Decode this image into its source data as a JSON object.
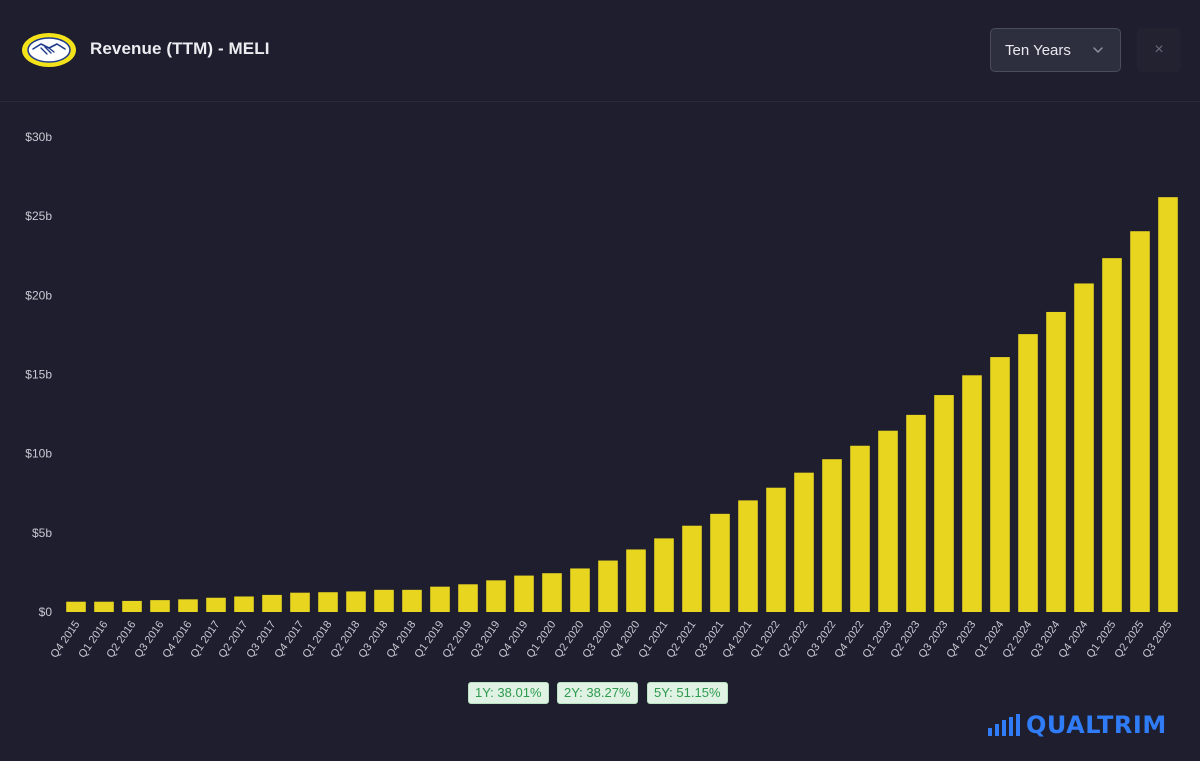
{
  "header": {
    "title": "Revenue (TTM) - MELI",
    "range_select": "Ten Years",
    "close_label": "×"
  },
  "growth_badges": [
    {
      "label": "1Y: 38.01%"
    },
    {
      "label": "2Y: 38.27%"
    },
    {
      "label": "5Y: 51.15%"
    }
  ],
  "brand": {
    "name": "QUALTRIM"
  },
  "colors": {
    "background": "#1e1e2e",
    "bar": "#e7d51f",
    "badge_bg": "#dff2e3",
    "badge_text": "#2f9a4f",
    "brand": "#2f7cf6"
  },
  "icons": {
    "logo": "handshake-logo-icon",
    "select": "chevron-down-icon",
    "close": "close-icon",
    "brand": "bar-chart-icon"
  },
  "chart_data": {
    "type": "bar",
    "title": "Revenue (TTM) - MELI",
    "ylim": [
      0,
      30
    ],
    "y_ticks": [
      "$0",
      "$5b",
      "$10b",
      "$15b",
      "$20b",
      "$25b",
      "$30b"
    ],
    "y_tick_values": [
      0,
      5,
      10,
      15,
      20,
      25,
      30
    ],
    "grid": false,
    "categories": [
      "Q4 2015",
      "Q1 2016",
      "Q2 2016",
      "Q3 2016",
      "Q4 2016",
      "Q1 2017",
      "Q2 2017",
      "Q3 2017",
      "Q4 2017",
      "Q1 2018",
      "Q2 2018",
      "Q3 2018",
      "Q4 2018",
      "Q1 2019",
      "Q2 2019",
      "Q3 2019",
      "Q4 2019",
      "Q1 2020",
      "Q2 2020",
      "Q3 2020",
      "Q4 2020",
      "Q1 2021",
      "Q2 2021",
      "Q3 2021",
      "Q4 2021",
      "Q1 2022",
      "Q2 2022",
      "Q3 2022",
      "Q4 2022",
      "Q1 2023",
      "Q2 2023",
      "Q3 2023",
      "Q4 2023",
      "Q1 2024",
      "Q2 2024",
      "Q3 2024",
      "Q4 2024",
      "Q1 2025",
      "Q2 2025",
      "Q3 2025"
    ],
    "values": [
      0.65,
      0.65,
      0.7,
      0.75,
      0.8,
      0.9,
      0.98,
      1.08,
      1.22,
      1.25,
      1.3,
      1.4,
      1.4,
      1.6,
      1.75,
      2.0,
      2.3,
      2.45,
      2.75,
      3.25,
      3.95,
      4.65,
      5.45,
      6.2,
      7.05,
      7.85,
      8.8,
      9.65,
      10.5,
      11.45,
      12.45,
      13.7,
      14.95,
      16.1,
      17.55,
      18.95,
      20.75,
      22.35,
      24.05,
      26.2
    ]
  }
}
